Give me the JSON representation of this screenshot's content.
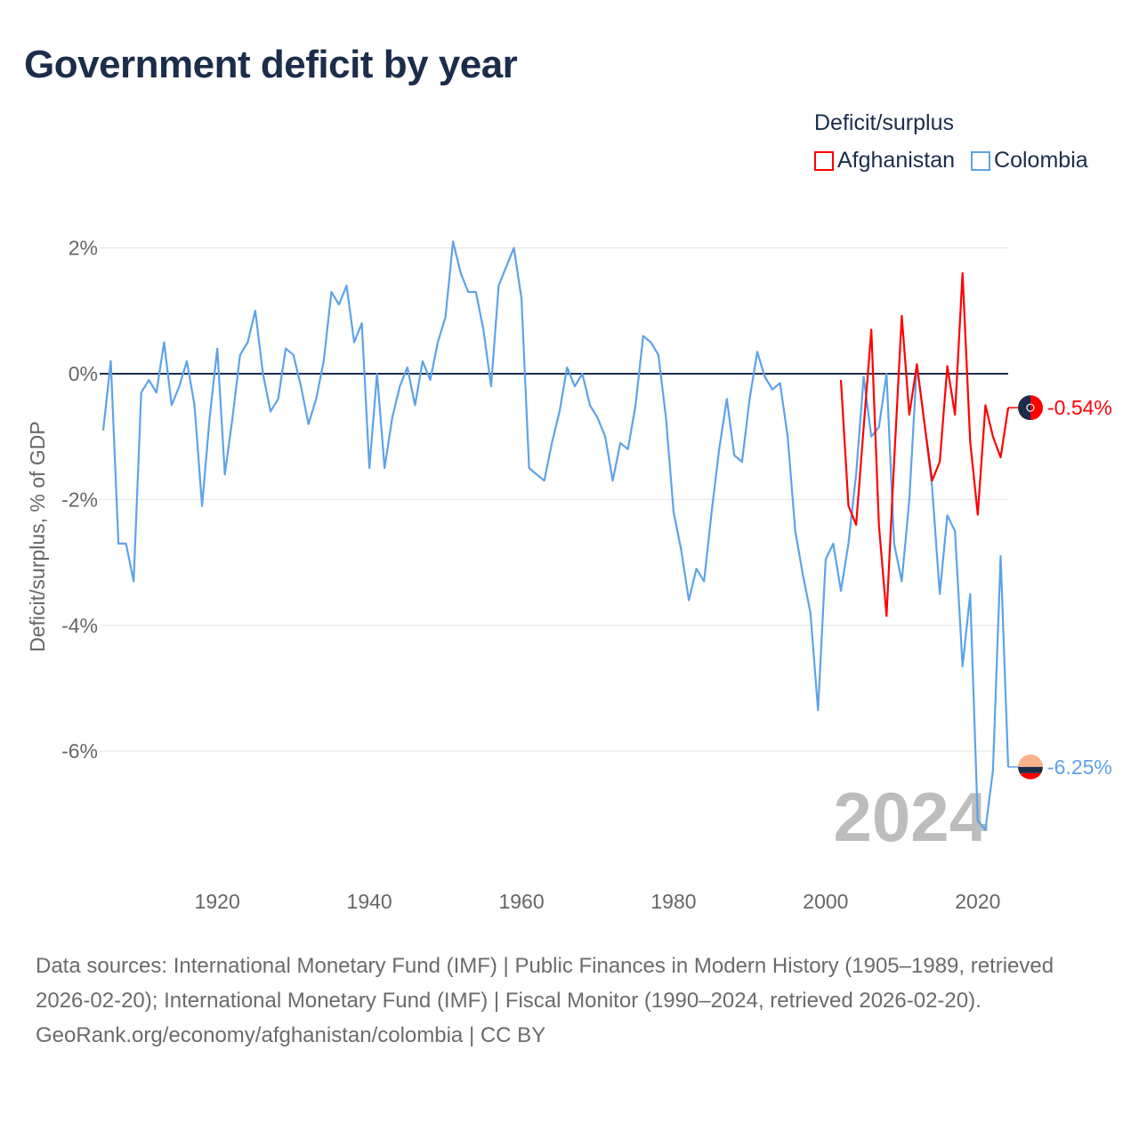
{
  "title": "Government deficit by year",
  "legend": {
    "title": "Deficit/surplus",
    "items": [
      {
        "label": "Afghanistan",
        "color": "#ff0000"
      },
      {
        "label": "Colombia",
        "color": "#5ca3e8"
      }
    ]
  },
  "footer": {
    "sources": "Data sources: International Monetary Fund (IMF) | Public Finances in Modern History (1905–1989, retrieved 2026-02-20); International Monetary Fund (IMF) | Fiscal Monitor (1990–2024, retrieved 2026-02-20).",
    "link": "GeoRank.org/economy/afghanistan/colombia",
    "license": " | CC BY"
  },
  "chart_data": {
    "type": "line",
    "title": "Government deficit by year",
    "xlabel": "",
    "ylabel": "Deficit/surplus, % of GDP",
    "xlim": [
      1905,
      2024
    ],
    "ylim": [
      -7.4,
      2.3
    ],
    "x_ticks": [
      1920,
      1940,
      1960,
      1980,
      2000,
      2020
    ],
    "y_ticks": [
      2,
      0,
      -2,
      -4,
      -6
    ],
    "y_tick_labels": [
      "2%",
      "0%",
      "-2%",
      "-4%",
      "-6%"
    ],
    "grid": true,
    "legend_position": "top-right",
    "year_watermark": "2024",
    "series": [
      {
        "name": "Afghanistan",
        "color": "#ff0000",
        "end_label": "-0.54%",
        "start_year": 2002,
        "values": [
          -0.1,
          -2.1,
          -2.4,
          -0.85,
          0.7,
          -2.4,
          -3.85,
          -1.4,
          0.92,
          -0.65,
          0.15,
          -0.8,
          -1.7,
          -1.4,
          0.12,
          -0.65,
          1.6,
          -1.08,
          -2.24,
          -0.5,
          -1.0,
          -1.33,
          -0.54
        ]
      },
      {
        "name": "Colombia",
        "color": "#5ca3e8",
        "end_label": "-6.25%",
        "start_year": 1905,
        "values": [
          -0.9,
          0.2,
          -2.7,
          -2.7,
          -3.3,
          -0.3,
          -0.1,
          -0.3,
          0.5,
          -0.5,
          -0.2,
          0.2,
          -0.5,
          -2.1,
          -0.7,
          0.4,
          -1.6,
          -0.7,
          0.3,
          0.5,
          1.0,
          0.0,
          -0.6,
          -0.4,
          0.4,
          0.3,
          -0.2,
          -0.8,
          -0.4,
          0.2,
          1.3,
          1.1,
          1.4,
          0.5,
          0.8,
          -1.5,
          0.0,
          -1.5,
          -0.7,
          -0.2,
          0.1,
          -0.5,
          0.2,
          -0.1,
          0.5,
          0.9,
          2.1,
          1.6,
          1.3,
          1.3,
          0.7,
          -0.2,
          1.4,
          1.7,
          2.0,
          1.2,
          -1.5,
          -1.6,
          -1.7,
          -1.1,
          -0.6,
          0.1,
          -0.2,
          0.0,
          -0.5,
          -0.7,
          -1.0,
          -1.7,
          -1.1,
          -1.2,
          -0.5,
          0.6,
          0.5,
          0.3,
          -0.7,
          -2.2,
          -2.8,
          -3.6,
          -3.1,
          -3.3,
          -2.2,
          -1.2,
          -0.4,
          -1.3,
          -1.4,
          -0.4,
          0.35,
          -0.05,
          -0.25,
          -0.15,
          -1.0,
          -2.5,
          -3.2,
          -3.8,
          -5.35,
          -2.95,
          -2.7,
          -3.45,
          -2.7,
          -1.6,
          -0.05,
          -1.0,
          -0.85,
          0.0,
          -2.7,
          -3.3,
          -2.0,
          0.15,
          -0.8,
          -1.8,
          -3.5,
          -2.25,
          -2.5,
          -4.65,
          -3.5,
          -7.1,
          -7.25,
          -6.3,
          -2.9,
          -6.25
        ]
      }
    ]
  }
}
